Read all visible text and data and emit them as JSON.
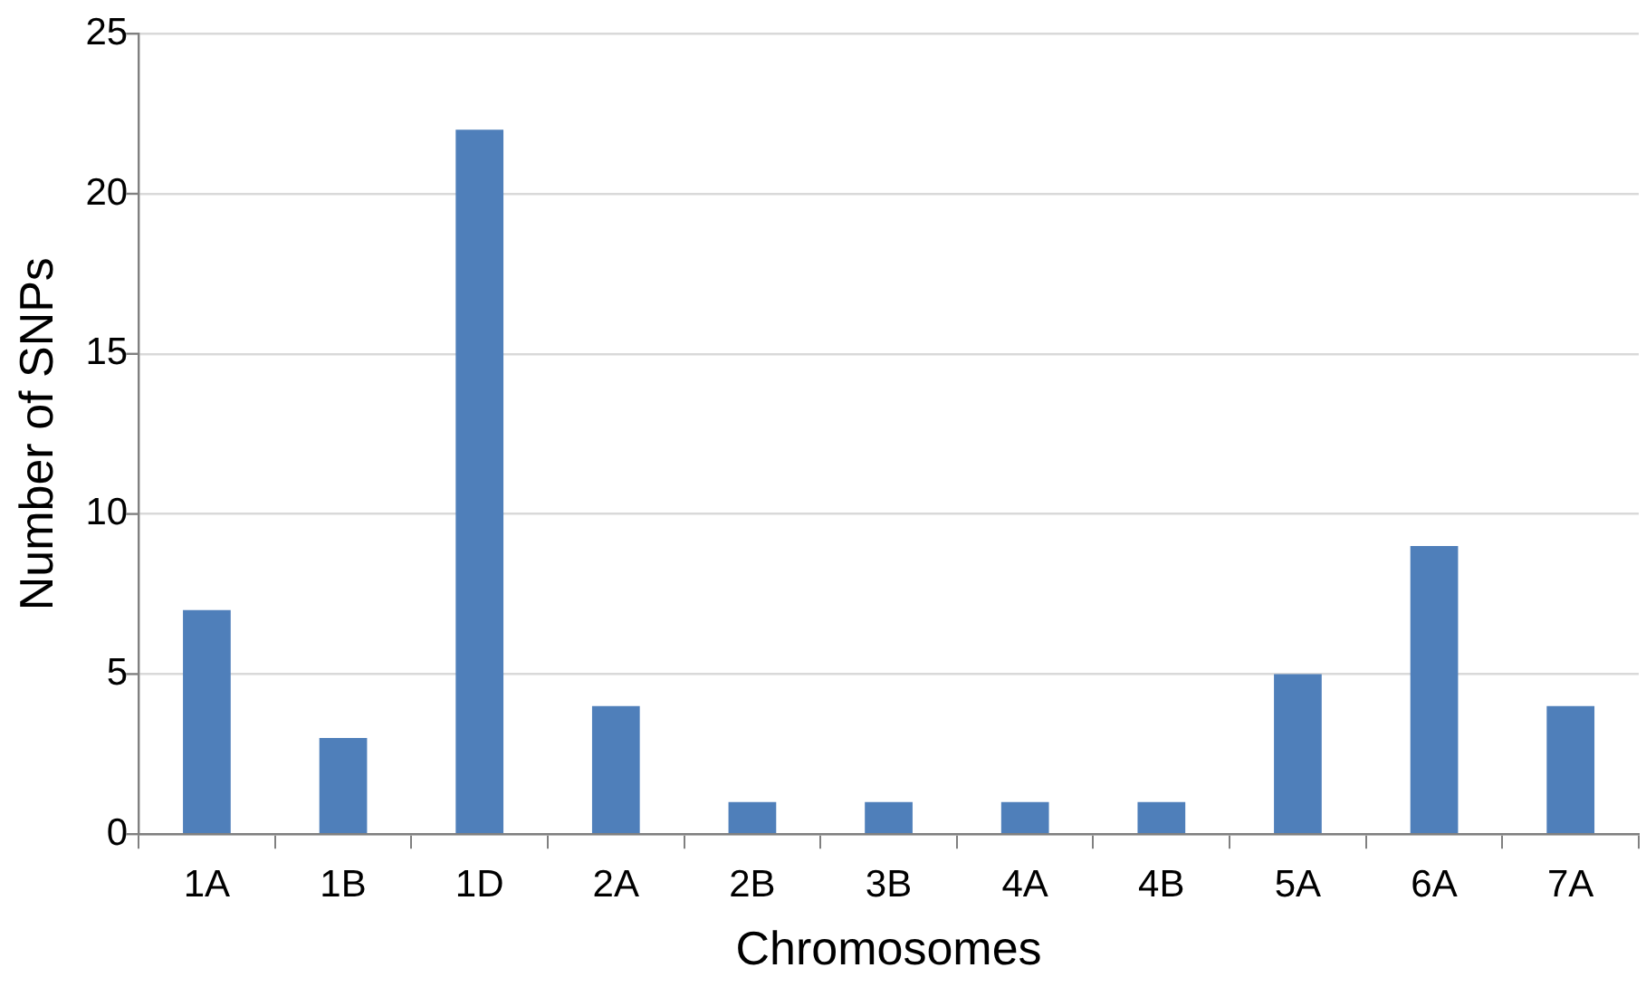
{
  "chart_data": {
    "type": "bar",
    "xlabel": "Chromosomes",
    "ylabel": "Number of SNPs",
    "categories": [
      "1A",
      "1B",
      "1D",
      "2A",
      "2B",
      "3B",
      "4A",
      "4B",
      "5A",
      "6A",
      "7A"
    ],
    "values": [
      7,
      3,
      22,
      4,
      1,
      1,
      1,
      1,
      5,
      9,
      4
    ],
    "color": "#4f7fba",
    "ylim": [
      0,
      25
    ],
    "yticks": [
      0,
      5,
      10,
      15,
      20,
      25
    ],
    "grid": "y",
    "legend": false
  }
}
